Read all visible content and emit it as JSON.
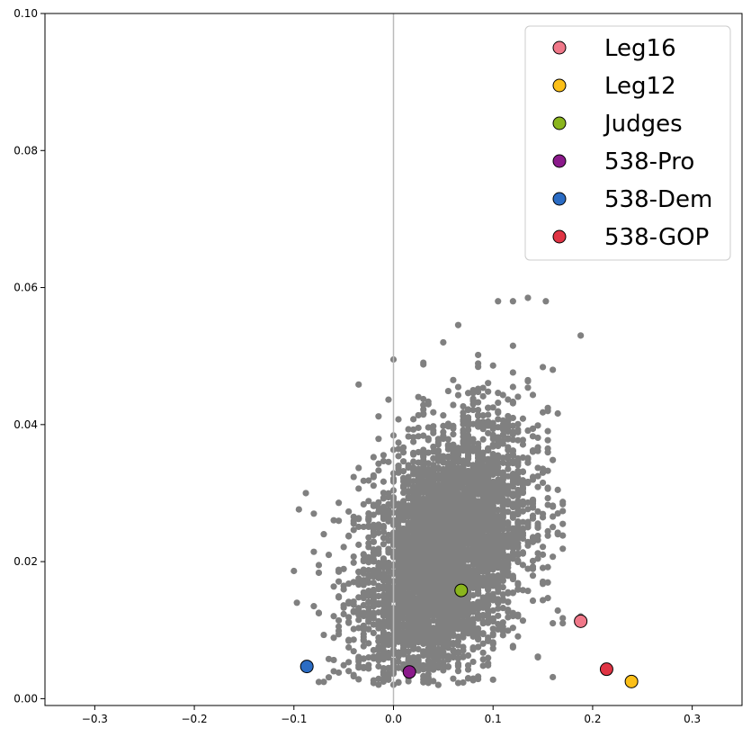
{
  "chart_data": {
    "type": "scatter",
    "title": "",
    "xlabel": "",
    "ylabel": "",
    "xlim": [
      -0.35,
      0.35
    ],
    "ylim": [
      -0.001,
      0.1
    ],
    "x_ticks": [
      "−0.3",
      "−0.2",
      "−0.1",
      "0.0",
      "0.1",
      "0.2",
      "0.3"
    ],
    "y_ticks": [
      "0.00",
      "0.02",
      "0.04",
      "0.06",
      "0.08",
      "0.10"
    ],
    "x_tick_values": [
      -0.3,
      -0.2,
      -0.1,
      0.0,
      0.1,
      0.2,
      0.3
    ],
    "y_tick_values": [
      0.0,
      0.02,
      0.04,
      0.06,
      0.08,
      0.1
    ],
    "grid": false,
    "reference_line": {
      "x": 0.0,
      "color": "#bbbbbb"
    },
    "legend_position": "top-right",
    "background_cloud": {
      "color": "#808080",
      "x_range": [
        -0.1,
        0.19
      ],
      "y_range": [
        0.002,
        0.059
      ],
      "description_points": [
        {
          "x": -0.097,
          "y": 0.014
        },
        {
          "x": -0.088,
          "y": 0.03
        },
        {
          "x": -0.08,
          "y": 0.027
        },
        {
          "x": -0.07,
          "y": 0.024
        },
        {
          "x": -0.06,
          "y": 0.004
        },
        {
          "x": 0.0,
          "y": 0.0495
        },
        {
          "x": 0.015,
          "y": 0.003
        },
        {
          "x": 0.045,
          "y": 0.002
        },
        {
          "x": 0.05,
          "y": 0.052
        },
        {
          "x": 0.105,
          "y": 0.058
        },
        {
          "x": 0.12,
          "y": 0.058
        },
        {
          "x": 0.135,
          "y": 0.0585
        },
        {
          "x": 0.153,
          "y": 0.058
        },
        {
          "x": 0.16,
          "y": 0.048
        },
        {
          "x": 0.17,
          "y": 0.0255
        },
        {
          "x": 0.17,
          "y": 0.011
        },
        {
          "x": 0.188,
          "y": 0.053
        },
        {
          "x": 0.188,
          "y": 0.012
        },
        {
          "x": 0.16,
          "y": 0.011
        }
      ]
    },
    "series": [
      {
        "name": "Leg16",
        "color": "#f07889",
        "x": 0.188,
        "y": 0.0113
      },
      {
        "name": "Leg12",
        "color": "#fbbf18",
        "x": 0.239,
        "y": 0.0025
      },
      {
        "name": "Judges",
        "color": "#8ab51d",
        "x": 0.068,
        "y": 0.0158
      },
      {
        "name": "538-Pro",
        "color": "#8b1a8b",
        "x": 0.016,
        "y": 0.0039
      },
      {
        "name": "538-Dem",
        "color": "#2b6cc4",
        "x": -0.087,
        "y": 0.0047
      },
      {
        "name": "538-GOP",
        "color": "#e03444",
        "x": 0.214,
        "y": 0.0043
      }
    ]
  }
}
